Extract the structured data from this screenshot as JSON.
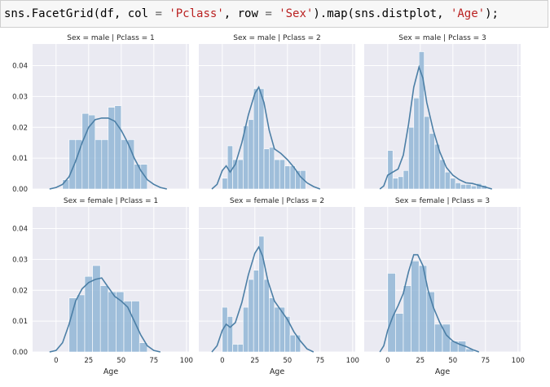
{
  "code": {
    "tokens": [
      {
        "t": "sns.FacetGrid(df, col ",
        "k": "name"
      },
      {
        "t": "=",
        "k": "op"
      },
      {
        "t": " ",
        "k": "name"
      },
      {
        "t": "'Pclass'",
        "k": "str"
      },
      {
        "t": ", row ",
        "k": "name"
      },
      {
        "t": "=",
        "k": "op"
      },
      {
        "t": " ",
        "k": "name"
      },
      {
        "t": "'Sex'",
        "k": "str"
      },
      {
        "t": ").map(sns.distplot, ",
        "k": "name"
      },
      {
        "t": "'Age'",
        "k": "str"
      },
      {
        "t": ");",
        "k": "name"
      }
    ]
  },
  "colors": {
    "panel_bg": "#eaeaf2",
    "grid": "#ffffff",
    "bar": "#92b6d6",
    "kde": "#4c7fa6",
    "text": "#262626"
  },
  "chart_data": {
    "type": "histogram+kde",
    "xlabel": "Age",
    "xlim": [
      -18,
      102
    ],
    "ylim": [
      0,
      0.047
    ],
    "xticks": [
      0,
      25,
      50,
      75,
      100
    ],
    "yticks": [
      0.0,
      0.01,
      0.02,
      0.03,
      0.04
    ],
    "ytick_labels": [
      "0.00",
      "0.01",
      "0.02",
      "0.03",
      "0.04"
    ],
    "grid": true,
    "panels": [
      {
        "title": "Sex = male | Pclass = 1",
        "bins": [
          [
            5,
            10,
            0.003
          ],
          [
            10,
            15,
            0.016
          ],
          [
            15,
            20,
            0.016
          ],
          [
            20,
            25,
            0.0245
          ],
          [
            25,
            30,
            0.024
          ],
          [
            30,
            35,
            0.016
          ],
          [
            35,
            40,
            0.016
          ],
          [
            40,
            45,
            0.0265
          ],
          [
            45,
            50,
            0.027
          ],
          [
            50,
            55,
            0.016
          ],
          [
            55,
            60,
            0.016
          ],
          [
            60,
            65,
            0.008
          ],
          [
            65,
            70,
            0.008
          ]
        ],
        "kde": [
          [
            -5,
            0
          ],
          [
            0,
            0.0005
          ],
          [
            5,
            0.0015
          ],
          [
            10,
            0.004
          ],
          [
            15,
            0.009
          ],
          [
            20,
            0.015
          ],
          [
            25,
            0.02
          ],
          [
            30,
            0.0225
          ],
          [
            35,
            0.023
          ],
          [
            40,
            0.023
          ],
          [
            45,
            0.022
          ],
          [
            50,
            0.019
          ],
          [
            55,
            0.015
          ],
          [
            60,
            0.01
          ],
          [
            65,
            0.006
          ],
          [
            70,
            0.003
          ],
          [
            75,
            0.0015
          ],
          [
            80,
            0.0005
          ],
          [
            85,
            0
          ]
        ]
      },
      {
        "title": "Sex = male | Pclass = 2",
        "bins": [
          [
            0,
            4,
            0.0035
          ],
          [
            4,
            8,
            0.014
          ],
          [
            8,
            12,
            0.0095
          ],
          [
            12,
            16,
            0.0095
          ],
          [
            16,
            20,
            0.0205
          ],
          [
            20,
            24,
            0.0225
          ],
          [
            24,
            28,
            0.0325
          ],
          [
            28,
            32,
            0.0325
          ],
          [
            32,
            36,
            0.013
          ],
          [
            36,
            40,
            0.0135
          ],
          [
            40,
            44,
            0.0095
          ],
          [
            44,
            48,
            0.0095
          ],
          [
            48,
            52,
            0.0075
          ],
          [
            52,
            56,
            0.0075
          ],
          [
            56,
            60,
            0.006
          ],
          [
            60,
            64,
            0.006
          ]
        ],
        "kde": [
          [
            -8,
            0
          ],
          [
            -4,
            0.0015
          ],
          [
            0,
            0.006
          ],
          [
            3,
            0.0075
          ],
          [
            6,
            0.0055
          ],
          [
            10,
            0.008
          ],
          [
            15,
            0.015
          ],
          [
            20,
            0.024
          ],
          [
            25,
            0.031
          ],
          [
            28,
            0.033
          ],
          [
            32,
            0.028
          ],
          [
            36,
            0.019
          ],
          [
            40,
            0.013
          ],
          [
            45,
            0.0115
          ],
          [
            50,
            0.0095
          ],
          [
            55,
            0.007
          ],
          [
            60,
            0.004
          ],
          [
            65,
            0.002
          ],
          [
            70,
            0.0008
          ],
          [
            75,
            0
          ]
        ]
      },
      {
        "title": "Sex = male | Pclass = 3",
        "bins": [
          [
            0,
            4,
            0.0125
          ],
          [
            4,
            8,
            0.0035
          ],
          [
            8,
            12,
            0.004
          ],
          [
            12,
            16,
            0.006
          ],
          [
            16,
            20,
            0.02
          ],
          [
            20,
            24,
            0.0295
          ],
          [
            24,
            28,
            0.0445
          ],
          [
            28,
            32,
            0.0235
          ],
          [
            32,
            36,
            0.018
          ],
          [
            36,
            40,
            0.0145
          ],
          [
            40,
            44,
            0.0095
          ],
          [
            44,
            48,
            0.0055
          ],
          [
            48,
            52,
            0.0035
          ],
          [
            52,
            56,
            0.002
          ],
          [
            56,
            60,
            0.0015
          ],
          [
            60,
            64,
            0.0015
          ],
          [
            64,
            68,
            0.001
          ],
          [
            68,
            72,
            0.0018
          ],
          [
            72,
            76,
            0.0012
          ]
        ],
        "kde": [
          [
            -6,
            0
          ],
          [
            -3,
            0.001
          ],
          [
            0,
            0.0045
          ],
          [
            4,
            0.0055
          ],
          [
            8,
            0.0065
          ],
          [
            12,
            0.011
          ],
          [
            16,
            0.021
          ],
          [
            20,
            0.033
          ],
          [
            24,
            0.0395
          ],
          [
            27,
            0.036
          ],
          [
            30,
            0.028
          ],
          [
            35,
            0.019
          ],
          [
            40,
            0.012
          ],
          [
            45,
            0.007
          ],
          [
            50,
            0.0045
          ],
          [
            55,
            0.003
          ],
          [
            60,
            0.002
          ],
          [
            65,
            0.0018
          ],
          [
            70,
            0.0012
          ],
          [
            75,
            0.0006
          ],
          [
            80,
            0
          ]
        ]
      },
      {
        "title": "Sex = female | Pclass = 1",
        "bins": [
          [
            10,
            16,
            0.0175
          ],
          [
            16,
            22,
            0.0185
          ],
          [
            22,
            28,
            0.0245
          ],
          [
            28,
            34,
            0.028
          ],
          [
            34,
            40,
            0.0215
          ],
          [
            40,
            46,
            0.0195
          ],
          [
            46,
            52,
            0.0195
          ],
          [
            52,
            58,
            0.0165
          ],
          [
            58,
            64,
            0.0165
          ],
          [
            64,
            70,
            0.003
          ]
        ],
        "kde": [
          [
            -5,
            0
          ],
          [
            0,
            0.0005
          ],
          [
            5,
            0.003
          ],
          [
            10,
            0.009
          ],
          [
            15,
            0.0165
          ],
          [
            20,
            0.0205
          ],
          [
            25,
            0.0225
          ],
          [
            30,
            0.0235
          ],
          [
            35,
            0.024
          ],
          [
            40,
            0.021
          ],
          [
            45,
            0.018
          ],
          [
            50,
            0.0165
          ],
          [
            55,
            0.0145
          ],
          [
            60,
            0.01
          ],
          [
            65,
            0.0055
          ],
          [
            70,
            0.002
          ],
          [
            75,
            0.0005
          ],
          [
            80,
            0
          ]
        ]
      },
      {
        "title": "Sex = female | Pclass = 2",
        "bins": [
          [
            0,
            4,
            0.0145
          ],
          [
            4,
            8,
            0.0115
          ],
          [
            8,
            12,
            0.0025
          ],
          [
            12,
            16,
            0.0025
          ],
          [
            16,
            20,
            0.0145
          ],
          [
            20,
            24,
            0.0235
          ],
          [
            24,
            28,
            0.0265
          ],
          [
            28,
            32,
            0.0375
          ],
          [
            32,
            36,
            0.0235
          ],
          [
            36,
            40,
            0.0175
          ],
          [
            40,
            44,
            0.0145
          ],
          [
            44,
            48,
            0.0145
          ],
          [
            48,
            52,
            0.0115
          ],
          [
            52,
            56,
            0.0055
          ],
          [
            56,
            60,
            0.0055
          ]
        ],
        "kde": [
          [
            -8,
            0
          ],
          [
            -4,
            0.002
          ],
          [
            0,
            0.007
          ],
          [
            3,
            0.009
          ],
          [
            6,
            0.008
          ],
          [
            10,
            0.0095
          ],
          [
            15,
            0.016
          ],
          [
            20,
            0.025
          ],
          [
            25,
            0.032
          ],
          [
            28,
            0.034
          ],
          [
            31,
            0.031
          ],
          [
            35,
            0.023
          ],
          [
            40,
            0.0165
          ],
          [
            45,
            0.0135
          ],
          [
            50,
            0.0105
          ],
          [
            55,
            0.0065
          ],
          [
            60,
            0.0035
          ],
          [
            65,
            0.001
          ],
          [
            70,
            0
          ]
        ]
      },
      {
        "title": "Sex = female | Pclass = 3",
        "bins": [
          [
            0,
            6,
            0.0255
          ],
          [
            6,
            12,
            0.0125
          ],
          [
            12,
            18,
            0.0215
          ],
          [
            18,
            24,
            0.0295
          ],
          [
            24,
            30,
            0.028
          ],
          [
            30,
            36,
            0.0195
          ],
          [
            36,
            42,
            0.009
          ],
          [
            42,
            48,
            0.009
          ],
          [
            48,
            54,
            0.0035
          ],
          [
            54,
            60,
            0.0035
          ],
          [
            60,
            66,
            0.001
          ]
        ],
        "kde": [
          [
            -6,
            0
          ],
          [
            -3,
            0.002
          ],
          [
            0,
            0.007
          ],
          [
            4,
            0.0115
          ],
          [
            8,
            0.015
          ],
          [
            12,
            0.019
          ],
          [
            16,
            0.026
          ],
          [
            20,
            0.0315
          ],
          [
            23,
            0.0315
          ],
          [
            27,
            0.028
          ],
          [
            31,
            0.02
          ],
          [
            35,
            0.0145
          ],
          [
            40,
            0.0095
          ],
          [
            45,
            0.0055
          ],
          [
            50,
            0.0035
          ],
          [
            55,
            0.0025
          ],
          [
            60,
            0.0018
          ],
          [
            65,
            0.0008
          ],
          [
            70,
            0
          ]
        ]
      }
    ]
  }
}
